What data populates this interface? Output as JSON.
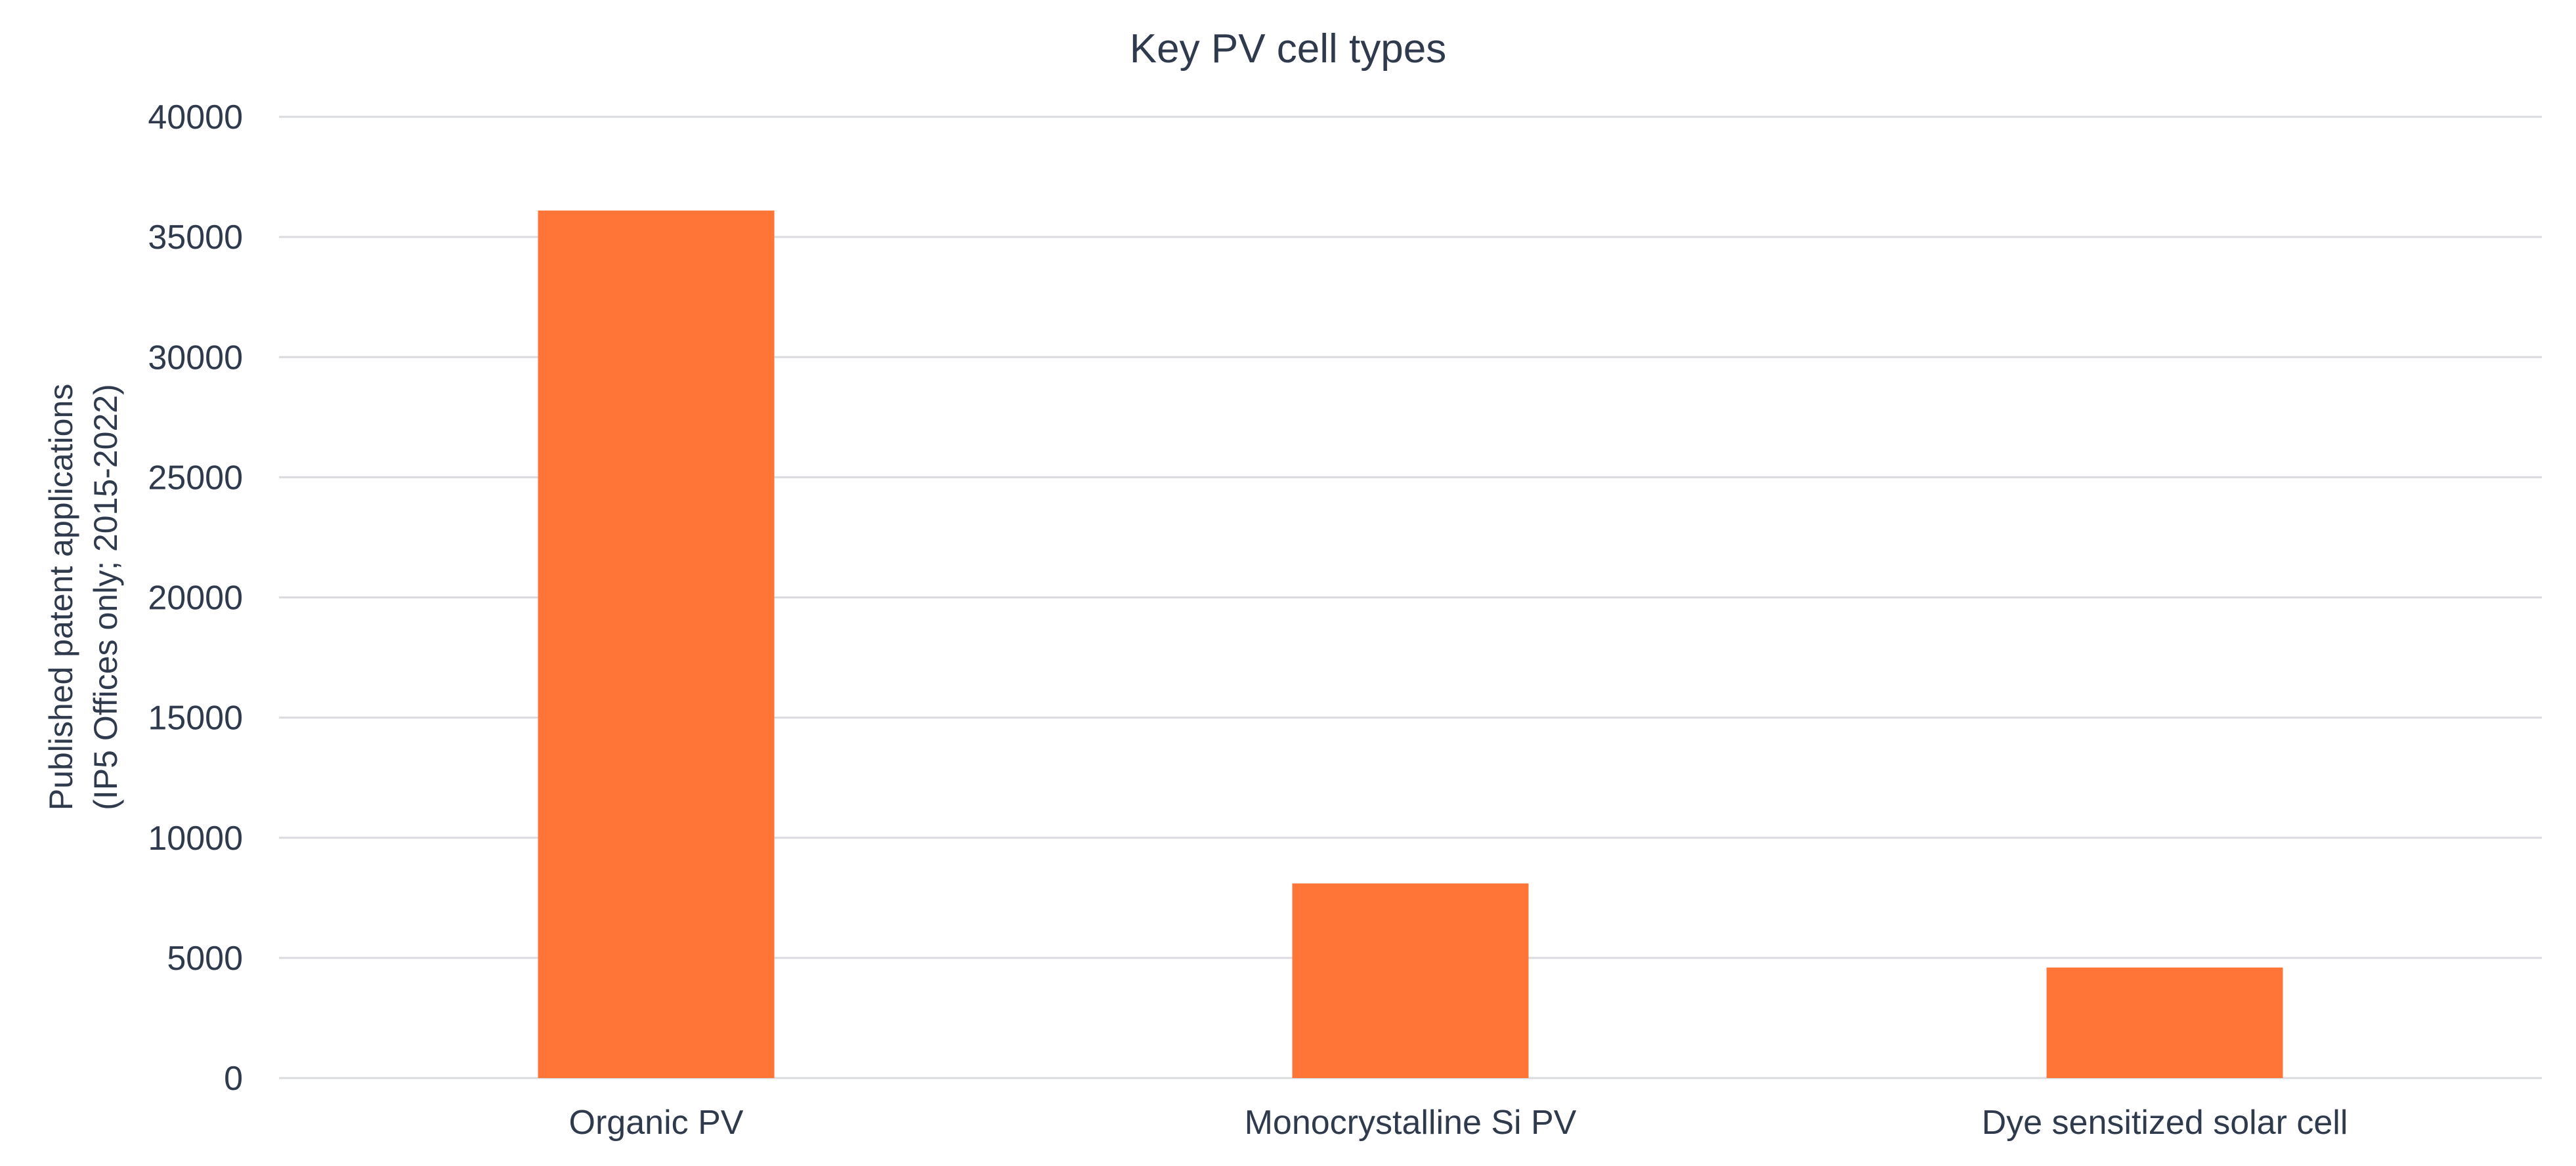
{
  "chart_data": {
    "type": "bar",
    "title": "Key PV cell types",
    "ylabel_lines": [
      "Published patent applications",
      "(IP5 Offices only; 2015-2022)"
    ],
    "xlabel": "",
    "categories": [
      "Organic PV",
      "Monocrystalline Si PV",
      "Dye sensitized solar cell"
    ],
    "values": [
      36100,
      8100,
      4600
    ],
    "ylim": [
      0,
      40000
    ],
    "yticks": [
      0,
      5000,
      10000,
      15000,
      20000,
      25000,
      30000,
      35000,
      40000
    ],
    "grid": true,
    "legend": "none",
    "bar_color": "#ff7538"
  }
}
